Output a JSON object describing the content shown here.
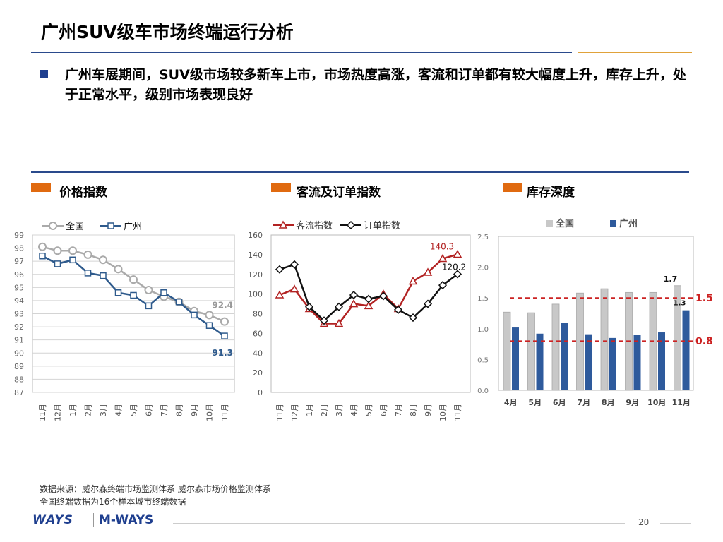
{
  "page": {
    "title": "广州SUV级车市场终端运行分析",
    "bullet": "广州车展期间，SUV级市场较多新车上市，市场热度高涨，客流和订单都有较大幅度上升，库存上升，处于正常水平，级别市场表现良好",
    "note_line1": "数据来源：威尔森终端市场监测体系   威尔森市场价格监测体系",
    "note_line2": "全国终端数据为16个样本城市终端数据",
    "page_number": "20",
    "logo_ways": "WAYS",
    "logo_mways": "M-WAYS",
    "colors": {
      "title_rule": "#2a4a8c",
      "accent_rule": "#e0a23a",
      "section_marker": "#e06a10"
    }
  },
  "chart_data": [
    {
      "type": "line",
      "section_label": "价格指数",
      "categories": [
        "11月",
        "12月",
        "1月",
        "2月",
        "3月",
        "4月",
        "5月",
        "6月",
        "7月",
        "8月",
        "9月",
        "10月",
        "11月"
      ],
      "series": [
        {
          "name": "全国",
          "color": "#aaaaaa",
          "values": [
            98.1,
            97.8,
            97.8,
            97.5,
            97.1,
            96.4,
            95.6,
            94.8,
            94.3,
            93.9,
            93.2,
            92.9,
            92.4
          ]
        },
        {
          "name": "广州",
          "color": "#2e5a8c",
          "values": [
            97.4,
            96.8,
            97.1,
            96.1,
            95.9,
            94.6,
            94.4,
            93.6,
            94.6,
            93.9,
            92.9,
            92.1,
            91.3
          ]
        }
      ],
      "ylim": [
        87,
        99
      ],
      "yticks": [
        "99",
        "98",
        "97",
        "96",
        "95",
        "94",
        "93",
        "92",
        "91",
        "90",
        "89",
        "88",
        "87"
      ],
      "end_labels": [
        "92.4",
        "91.3"
      ],
      "legend": "top",
      "grid": true
    },
    {
      "type": "line",
      "section_label": "客流及订单指数",
      "categories": [
        "11月",
        "12月",
        "1月",
        "2月",
        "3月",
        "4月",
        "5月",
        "6月",
        "7月",
        "8月",
        "9月",
        "10月",
        "11月"
      ],
      "series": [
        {
          "name": "客流指数",
          "color": "#b22222",
          "marker": "triangle",
          "values": [
            99,
            105,
            85,
            70,
            70,
            90,
            88,
            100,
            85,
            113,
            122,
            136,
            140.3
          ]
        },
        {
          "name": "订单指数",
          "color": "#111111",
          "marker": "diamond",
          "values": [
            125,
            130,
            87,
            73,
            87,
            99,
            95,
            98,
            84,
            76,
            90,
            109,
            120.2
          ]
        }
      ],
      "ylim": [
        0,
        160
      ],
      "yticks": [
        "160",
        "140",
        "120",
        "100",
        "80",
        "60",
        "40",
        "20",
        "0"
      ],
      "end_labels": [
        "140.3",
        "120.2"
      ],
      "legend": "top",
      "grid": false
    },
    {
      "type": "bar",
      "section_label": "库存深度",
      "categories": [
        "4月",
        "5月",
        "6月",
        "7月",
        "8月",
        "9月",
        "10月",
        "11月"
      ],
      "series": [
        {
          "name": "全国",
          "color": "#c8c8c8",
          "values": [
            1.27,
            1.26,
            1.4,
            1.58,
            1.65,
            1.59,
            1.59,
            1.7
          ]
        },
        {
          "name": "广州",
          "color": "#2e5a9c",
          "values": [
            1.02,
            0.92,
            1.1,
            0.91,
            0.85,
            0.9,
            0.94,
            1.3
          ]
        }
      ],
      "ylim": [
        0,
        2.5
      ],
      "yticks": [
        "2.5",
        "2.0",
        "1.5",
        "1.0",
        "0.5",
        "0.0"
      ],
      "value_labels": [
        "1.7",
        "1.3"
      ],
      "reference_lines": [
        {
          "value": 1.5,
          "label": "1.5",
          "color": "#cc2222"
        },
        {
          "value": 0.8,
          "label": "0.8",
          "color": "#cc2222"
        }
      ],
      "legend": "top",
      "grid": false
    }
  ]
}
